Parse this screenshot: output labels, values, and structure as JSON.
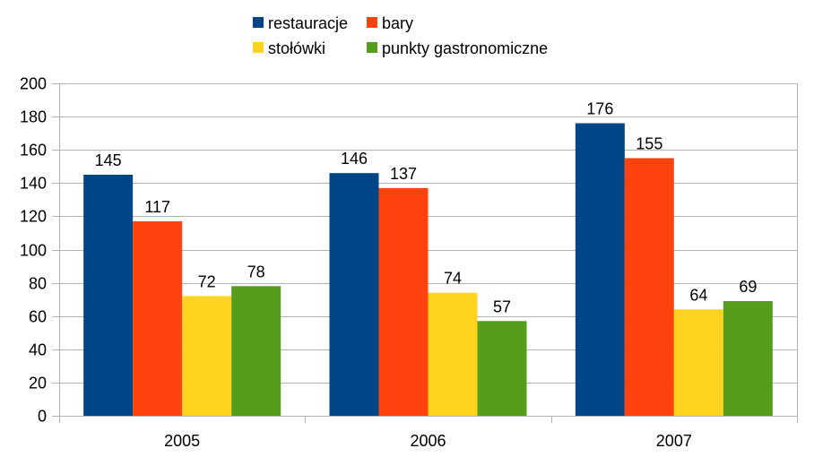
{
  "chart_data": {
    "type": "bar",
    "title": "",
    "xlabel": "",
    "ylabel": "",
    "categories": [
      "2005",
      "2006",
      "2007"
    ],
    "series": [
      {
        "name": "restauracje",
        "color": "#004586",
        "values": [
          145,
          146,
          176
        ]
      },
      {
        "name": "bary",
        "color": "#ff420e",
        "values": [
          117,
          137,
          155
        ]
      },
      {
        "name": "stołówki",
        "color": "#ffd320",
        "values": [
          72,
          74,
          64
        ]
      },
      {
        "name": "punkty gastronomiczne",
        "color": "#579d1c",
        "values": [
          78,
          57,
          69
        ]
      }
    ],
    "ylim": [
      0,
      200
    ],
    "yticks": [
      0,
      20,
      40,
      60,
      80,
      100,
      120,
      140,
      160,
      180,
      200
    ],
    "grid": true,
    "legend_position": "top",
    "data_labels": true
  }
}
